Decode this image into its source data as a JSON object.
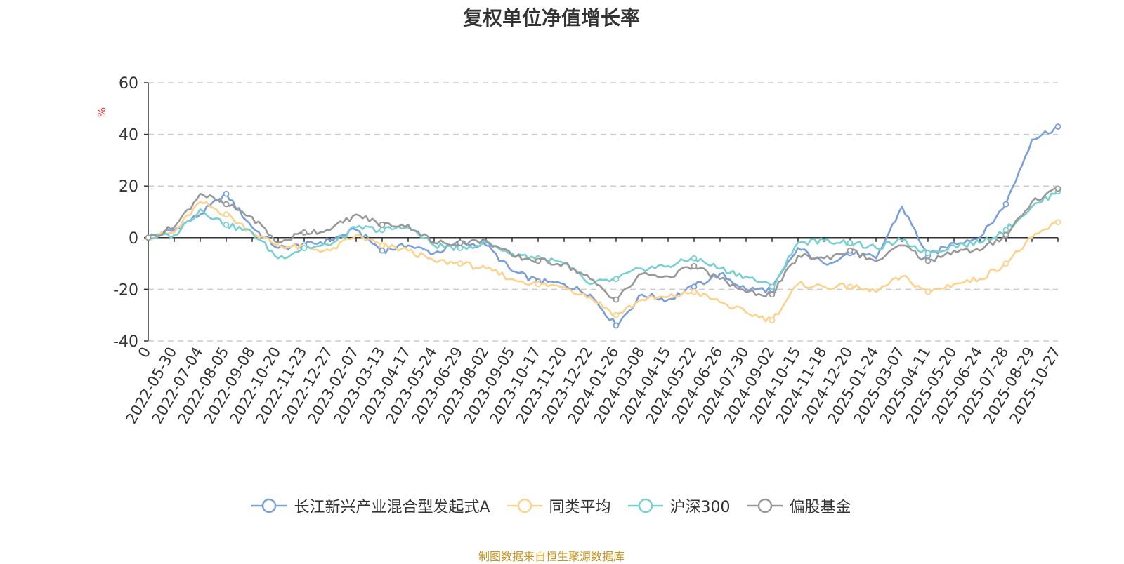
{
  "chart_data": {
    "type": "line",
    "title": "复权单位净值增长率",
    "ylabel": "%",
    "xlabel": "",
    "ylim": [
      -40,
      60
    ],
    "yticks": [
      -40,
      -20,
      0,
      20,
      40,
      60
    ],
    "grid": true,
    "categories": [
      "0",
      "2022-05-30",
      "2022-07-04",
      "2022-08-05",
      "2022-09-08",
      "2022-10-20",
      "2022-11-23",
      "2022-12-27",
      "2023-02-07",
      "2023-03-13",
      "2023-04-17",
      "2023-05-24",
      "2023-06-29",
      "2023-08-02",
      "2023-09-05",
      "2023-10-17",
      "2023-11-20",
      "2023-12-22",
      "2024-01-26",
      "2024-03-08",
      "2024-04-15",
      "2024-05-22",
      "2024-06-26",
      "2024-07-30",
      "2024-09-02",
      "2024-10-15",
      "2024-11-18",
      "2024-12-20",
      "2025-01-24",
      "2025-03-07",
      "2025-04-11",
      "2025-05-20",
      "2025-06-24",
      "2025-07-28",
      "2025-08-29",
      "2025-10-27"
    ],
    "series": [
      {
        "name": "长江新兴产业混合型发起式A",
        "color": "#7b9fd8",
        "values": [
          0,
          3,
          9,
          17,
          4,
          -4,
          -3,
          -1,
          3,
          -5,
          -3,
          -6,
          -2,
          -3,
          -13,
          -17,
          -18,
          -22,
          -34,
          -22,
          -24,
          -19,
          -14,
          -20,
          -20,
          -4,
          -10,
          -6,
          -8,
          12,
          -7,
          -2,
          0,
          13,
          38,
          43
        ]
      },
      {
        "name": "同类平均",
        "color": "#fcd38e",
        "values": [
          0,
          2,
          14,
          9,
          2,
          -3,
          -4,
          -5,
          1,
          -3,
          -5,
          -9,
          -10,
          -12,
          -16,
          -18,
          -19,
          -23,
          -30,
          -24,
          -23,
          -21,
          -25,
          -29,
          -32,
          -18,
          -19,
          -19,
          -21,
          -15,
          -21,
          -18,
          -16,
          -10,
          0,
          6
        ]
      },
      {
        "name": "沪深300",
        "color": "#7ad0d1",
        "values": [
          0,
          1,
          11,
          5,
          2,
          -8,
          -4,
          -3,
          4,
          3,
          4,
          -3,
          -4,
          -2,
          -6,
          -8,
          -10,
          -18,
          -16,
          -12,
          -11,
          -8,
          -12,
          -15,
          -19,
          -2,
          -1,
          -2,
          -4,
          -1,
          -6,
          -3,
          -2,
          3,
          12,
          18
        ]
      },
      {
        "name": "偏股基金",
        "color": "#999999",
        "values": [
          0,
          4,
          17,
          13,
          8,
          -2,
          2,
          3,
          9,
          5,
          5,
          -2,
          -2,
          -1,
          -7,
          -9,
          -10,
          -16,
          -24,
          -14,
          -15,
          -11,
          -16,
          -21,
          -22,
          -7,
          -8,
          -5,
          -9,
          -3,
          -9,
          -5,
          -5,
          1,
          14,
          19
        ]
      }
    ]
  },
  "source": "制图数据来自恒生聚源数据库"
}
